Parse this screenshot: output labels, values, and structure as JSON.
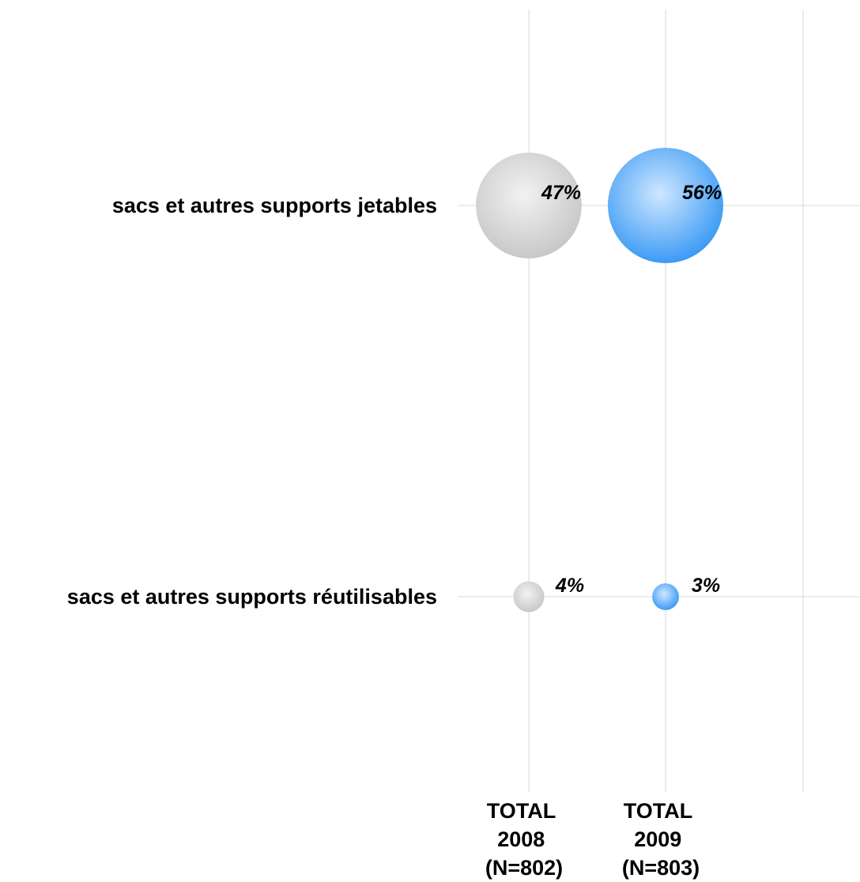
{
  "chart_data": {
    "type": "bubble",
    "title": "",
    "rows": [
      "sacs et autres supports jetables",
      "sacs et autres supports réutilisables"
    ],
    "columns": [
      {
        "lines": [
          "TOTAL",
          "2008",
          "(N=802)"
        ]
      },
      {
        "lines": [
          "TOTAL",
          "2009",
          "(N=803)"
        ]
      }
    ],
    "series": [
      {
        "values": [
          47,
          4
        ],
        "labels": [
          "47%",
          "4%"
        ]
      },
      {
        "values": [
          56,
          3
        ],
        "labels": [
          "56%",
          "3%"
        ]
      }
    ],
    "colors": {
      "series": [
        "#c8c8c8",
        "#3d9bf5"
      ],
      "series_highlight": [
        "#f2f2f2",
        "#cfe7ff"
      ],
      "grid": "#d9d9d9"
    },
    "grid": true
  }
}
